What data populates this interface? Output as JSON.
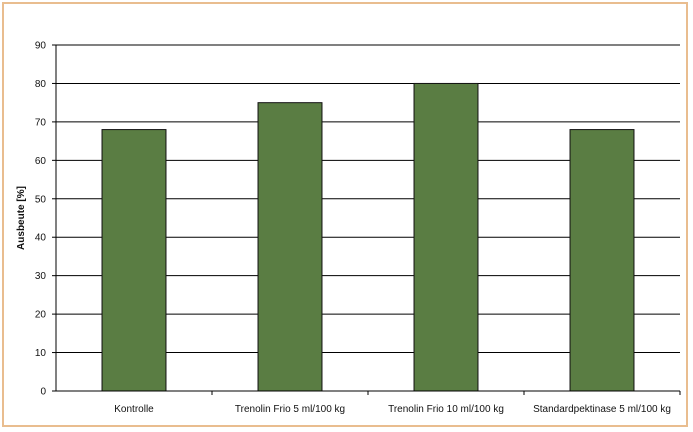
{
  "chart_data": {
    "type": "bar",
    "title": "",
    "xlabel": "",
    "ylabel": "Ausbeute [%]",
    "categories": [
      "Kontrolle",
      "Trenolin Frio 5 ml/100 kg",
      "Trenolin Frio 10 ml/100 kg",
      "Standardpektinase 5 ml/100 kg"
    ],
    "values": [
      68,
      75,
      80,
      68
    ],
    "ylim": [
      0,
      90
    ],
    "yticks": [
      0,
      10,
      20,
      30,
      40,
      50,
      60,
      70,
      80,
      90
    ],
    "grid": true,
    "legend": "none"
  },
  "colors": {
    "bar_fill": "#5a7d43",
    "bar_stroke": "#111111",
    "grid": "#000000",
    "frame_border": "#e9bd8f"
  }
}
